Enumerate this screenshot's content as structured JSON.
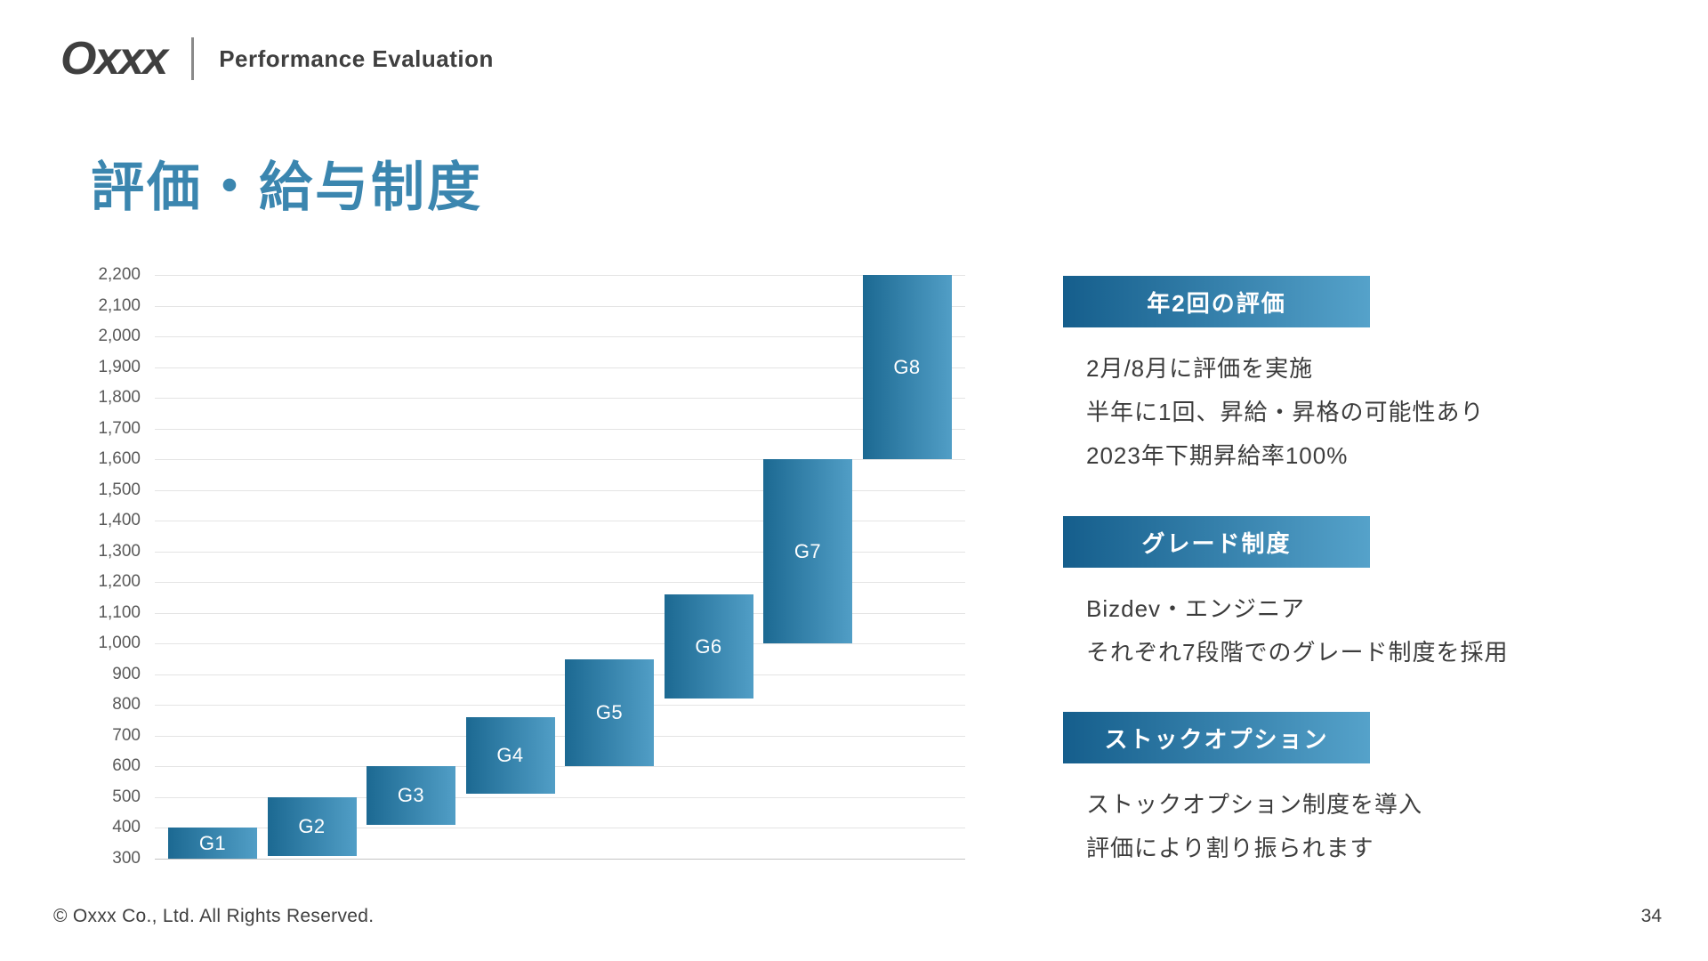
{
  "header": {
    "logo": "Oxxx",
    "subtitle": "Performance Evaluation"
  },
  "title": "評価・給与制度",
  "chart_data": {
    "type": "bar",
    "variant": "floating-range-bars",
    "title": "",
    "xlabel": "",
    "ylabel": "",
    "categories": [
      "G1",
      "G2",
      "G3",
      "G4",
      "G5",
      "G6",
      "G7",
      "G8"
    ],
    "series": [
      {
        "name": "grade-salary-range",
        "ranges": [
          [
            300,
            400
          ],
          [
            310,
            500
          ],
          [
            410,
            600
          ],
          [
            510,
            760
          ],
          [
            600,
            950
          ],
          [
            820,
            1160
          ],
          [
            1000,
            1600
          ],
          [
            1600,
            2200
          ]
        ]
      }
    ],
    "ylim": [
      300,
      2200
    ],
    "ytick_step": 100,
    "ytick_labels": [
      "300",
      "400",
      "500",
      "600",
      "700",
      "800",
      "900",
      "1,000",
      "1,100",
      "1,200",
      "1,300",
      "1,400",
      "1,500",
      "1,600",
      "1,700",
      "1,800",
      "1,900",
      "2,000",
      "2,100",
      "2,200"
    ],
    "grid": true,
    "legend": "none"
  },
  "sections": [
    {
      "title": "年2回の評価",
      "lines": [
        "2月/8月に評価を実施",
        "半年に1回、昇給・昇格の可能性あり",
        "2023年下期昇給率100%"
      ]
    },
    {
      "title": "グレード制度",
      "lines": [
        "Bizdev・エンジニア",
        "それぞれ7段階でのグレード制度を採用"
      ]
    },
    {
      "title": "ストックオプション",
      "lines": [
        "ストックオプション制度を導入",
        "評価により割り振られます"
      ]
    }
  ],
  "footer": {
    "copyright": "© Oxxx Co., Ltd. All Rights Reserved.",
    "page_number": "34"
  },
  "colors": {
    "accent_title": "#3b86af",
    "gradient_start": "#155e8c",
    "gradient_end": "#55a2ca",
    "bar_gradient_start": "#1c6992",
    "bar_gradient_end": "#519ec6",
    "grid_line": "#e4e4e4",
    "body_text": "#3c3c3c"
  }
}
